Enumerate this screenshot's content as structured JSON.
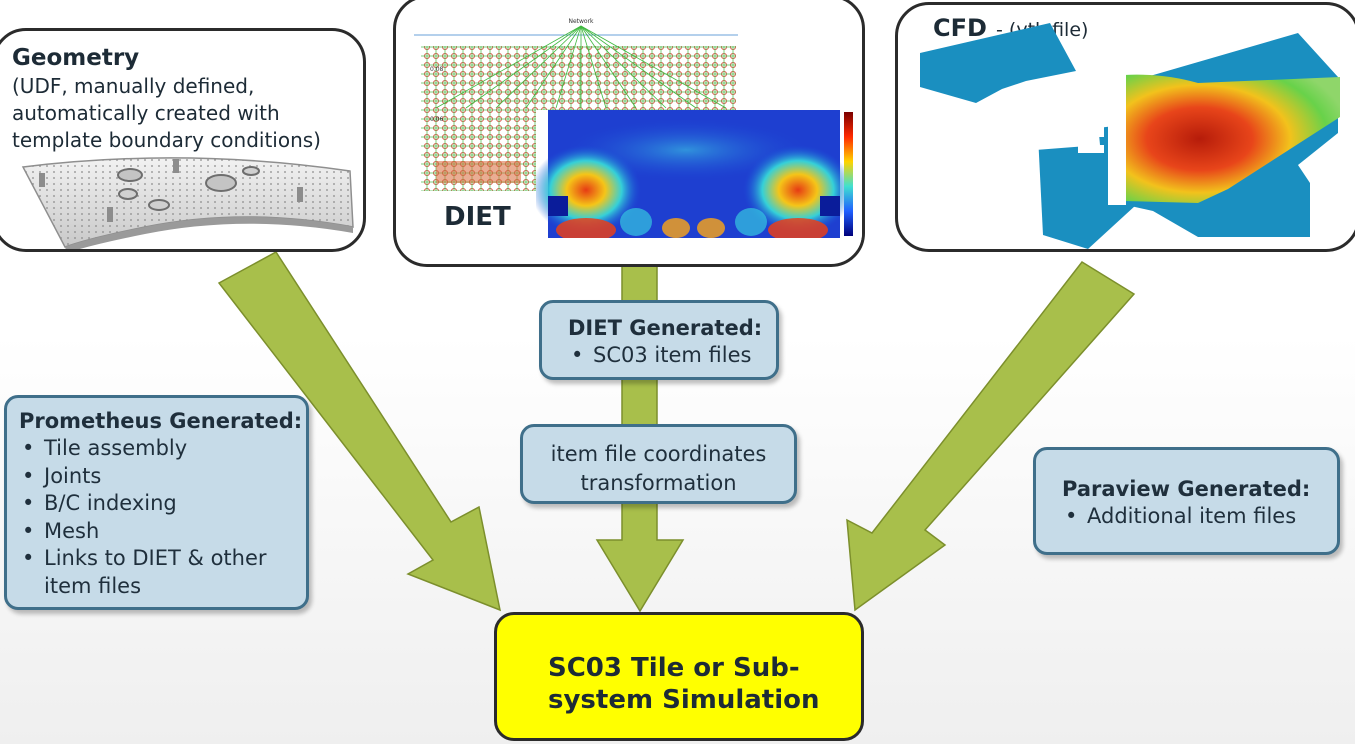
{
  "geometry": {
    "title": "Geometry",
    "desc_lines": [
      "(UDF, manually defined,",
      "automatically created with",
      "template boundary conditions)"
    ]
  },
  "diet": {
    "label": "DIET"
  },
  "cfd": {
    "title": "CFD",
    "subtitle": "- (vtk file)"
  },
  "diet_generated": {
    "title": "DIET Generated:",
    "items": [
      "SC03 item files"
    ]
  },
  "transform": {
    "lines": [
      "item file coordinates",
      "transformation"
    ]
  },
  "prometheus": {
    "title": "Prometheus Generated:",
    "items": [
      "Tile assembly",
      "Joints",
      "B/C indexing",
      "Mesh",
      "Links to DIET & other",
      "item files"
    ]
  },
  "paraview": {
    "title": "Paraview Generated:",
    "items": [
      "Additional item files"
    ]
  },
  "target": {
    "lines": [
      "SC03 Tile or Sub-",
      "system Simulation"
    ]
  },
  "colors": {
    "arrow": "#a8bf4b",
    "arrow_outline": "#7c8f2c",
    "target_fill": "#ffff00",
    "box_fill": "#c6dbe8",
    "box_border": "#3f6f8a"
  }
}
